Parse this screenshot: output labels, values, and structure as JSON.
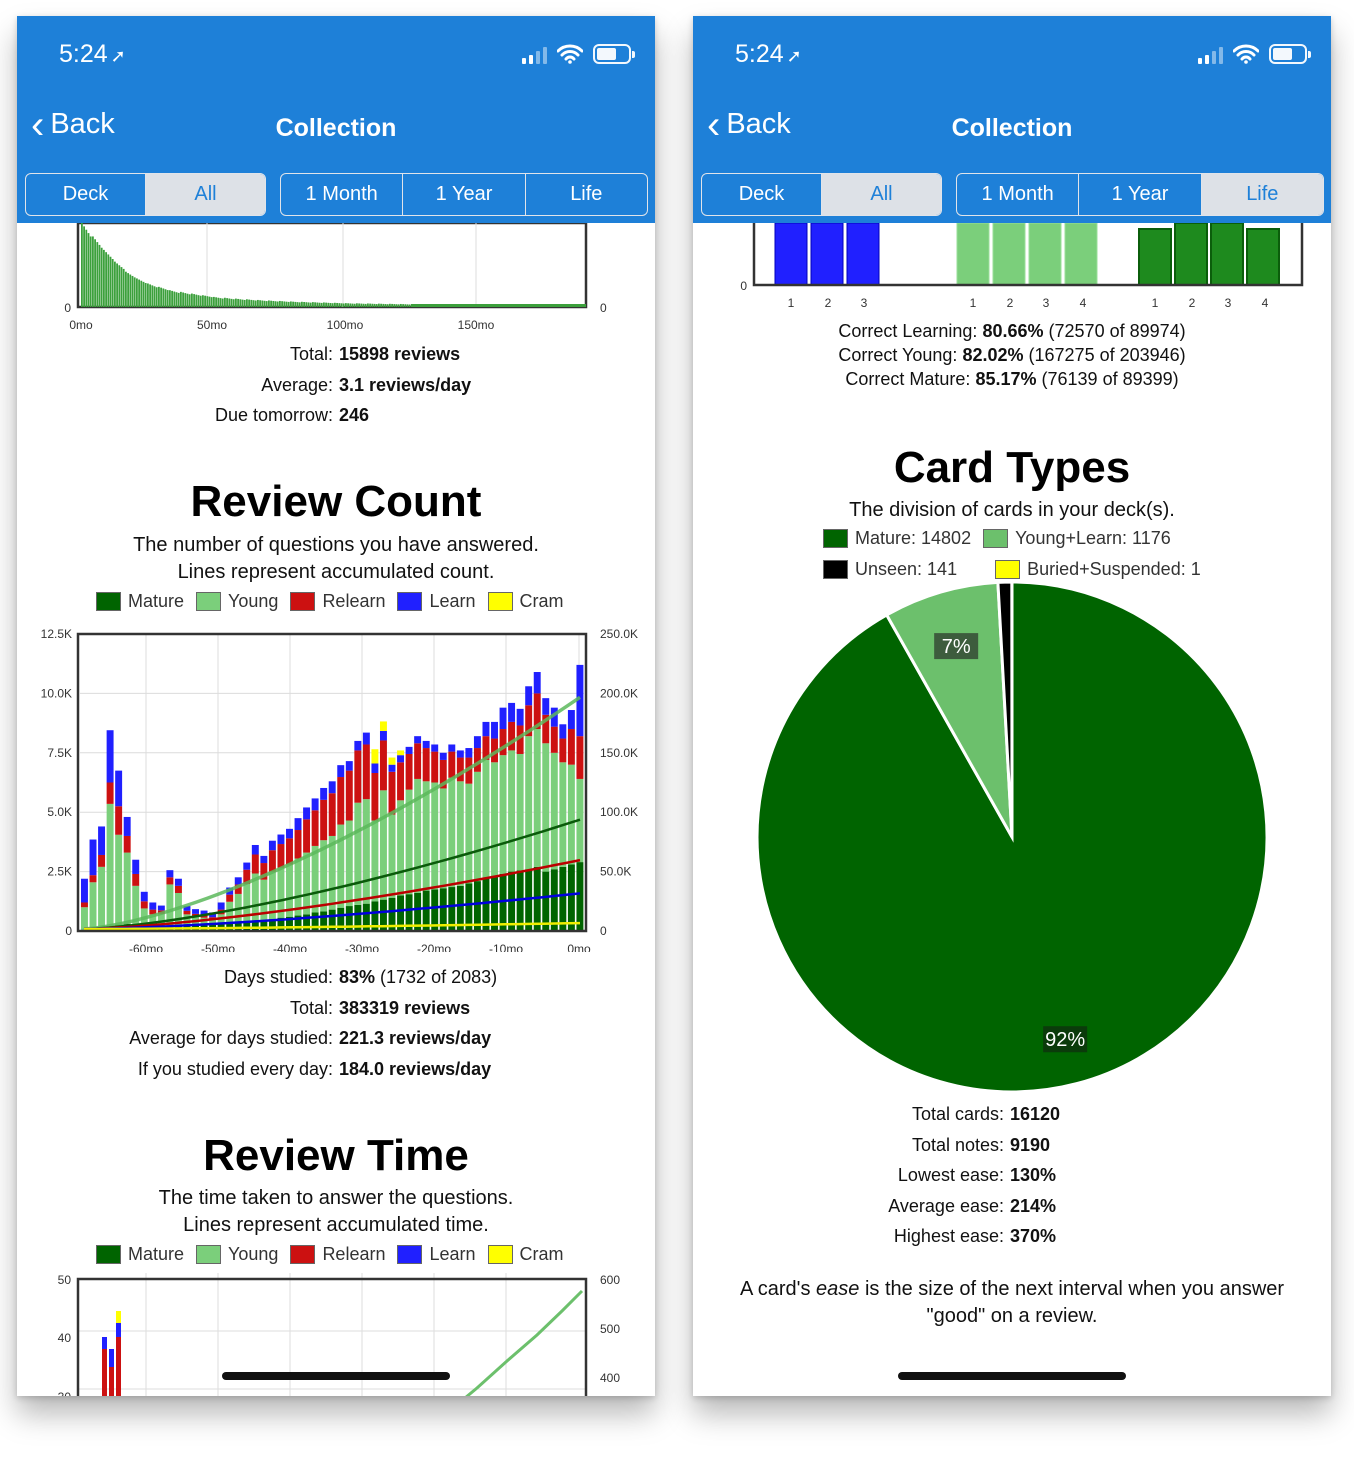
{
  "status": {
    "time": "5:24"
  },
  "nav": {
    "back_label": "Back",
    "title": "Collection"
  },
  "scope_options": [
    "Deck",
    "All"
  ],
  "scope_selected": "All",
  "period_options": [
    "1 Month",
    "1 Year",
    "Life"
  ],
  "period_selected_left": "1 Month",
  "period_selected_right": "Life",
  "colors": {
    "header": "#1e80d8",
    "mature": "#006400",
    "young": "#7bcf7b",
    "relearn": "#cc1111",
    "learn": "#2020ff",
    "cram": "#ffff00"
  },
  "left": {
    "forecast": {
      "x_ticks": [
        "0mo",
        "50mo",
        "100mo",
        "150mo"
      ],
      "y_left_tick": "0",
      "y_right_tick": "0",
      "stats": [
        {
          "label": "Total:",
          "value": "15898 reviews"
        },
        {
          "label": "Average:",
          "value": "3.1 reviews/day"
        },
        {
          "label": "Due tomorrow:",
          "value": "246"
        }
      ]
    },
    "review_count": {
      "title": "Review Count",
      "subtitle_1": "The number of questions you have answered.",
      "subtitle_2": "Lines represent accumulated count.",
      "legend": [
        "Mature",
        "Young",
        "Relearn",
        "Learn",
        "Cram"
      ],
      "stats": [
        {
          "label": "Days studied:",
          "value": "83%",
          "extra": " (1732 of 2083)"
        },
        {
          "label": "Total:",
          "value": "383319 reviews",
          "extra": ""
        },
        {
          "label": "Average for days studied:",
          "value": "221.3 reviews/day",
          "extra": ""
        },
        {
          "label": "If you studied every day:",
          "value": "184.0 reviews/day",
          "extra": ""
        }
      ]
    },
    "review_time": {
      "title": "Review Time",
      "subtitle_1": "The time taken to answer the questions.",
      "subtitle_2": "Lines represent accumulated time.",
      "legend": [
        "Mature",
        "Young",
        "Relearn",
        "Learn",
        "Cram"
      ]
    }
  },
  "right": {
    "answer_buttons": {
      "groups": [
        {
          "name": "Learning",
          "buttons": [
            "1",
            "2",
            "3"
          ]
        },
        {
          "name": "Young",
          "buttons": [
            "1",
            "2",
            "3",
            "4"
          ]
        },
        {
          "name": "Mature",
          "buttons": [
            "1",
            "2",
            "3",
            "4"
          ]
        }
      ],
      "y_tick": "0",
      "correct": [
        {
          "label": "Correct Learning:",
          "pct": "80.66%",
          "detail": "(72570 of 89974)"
        },
        {
          "label": "Correct Young:",
          "pct": "82.02%",
          "detail": "(167275 of 203946)"
        },
        {
          "label": "Correct Mature:",
          "pct": "85.17%",
          "detail": "(76139 of 89399)"
        }
      ]
    },
    "card_types": {
      "title": "Card Types",
      "subtitle": "The division of cards in your deck(s).",
      "legend": [
        "Mature: 14802",
        "Young+Learn: 1176",
        "Unseen: 141",
        "Buried+Suspended: 1"
      ],
      "stats": [
        {
          "label": "Total cards:",
          "value": "16120"
        },
        {
          "label": "Total notes:",
          "value": "9190"
        },
        {
          "label": "Lowest ease:",
          "value": "130%"
        },
        {
          "label": "Average ease:",
          "value": "214%"
        },
        {
          "label": "Highest ease:",
          "value": "370%"
        }
      ],
      "note_1_a": "A card's ",
      "note_1_em": "ease",
      "note_1_b": " is the size of the next interval when you answer",
      "note_2": "\"good\" on a review."
    }
  },
  "chart_data": [
    {
      "type": "bar",
      "title": "",
      "x_ticks": [
        "0mo",
        "50mo",
        "100mo",
        "150mo"
      ],
      "note": "forecast histogram, long decaying tail",
      "values": [
        50,
        42,
        34,
        27,
        21,
        17,
        14,
        12,
        10,
        9,
        8,
        7,
        6,
        5.5,
        5,
        4.6,
        4.2,
        3.9,
        3.6,
        3.3,
        3.1,
        2.9,
        2.7,
        2.5,
        2.3,
        2.2,
        2.1,
        2.0,
        1.9,
        1.8
      ]
    },
    {
      "type": "bar",
      "title": "Review Count",
      "x_ticks": [
        "-60mo",
        "-50mo",
        "-40mo",
        "-30mo",
        "-20mo",
        "-10mo",
        "0mo"
      ],
      "y_left_ticks": [
        "0",
        "2.5K",
        "5.0K",
        "7.5K",
        "10.0K",
        "12.5K"
      ],
      "y_right_ticks": [
        "0",
        "50.0K",
        "100.0K",
        "150.0K",
        "200.0K",
        "250.0K"
      ],
      "ylim": [
        0,
        12500
      ],
      "ylim_right": [
        0,
        250000
      ],
      "series": [
        {
          "name": "Mature",
          "values": [
            0,
            50,
            100,
            150,
            250,
            300,
            200,
            150,
            100,
            120,
            160,
            200,
            200,
            220,
            260,
            280,
            300,
            330,
            360,
            380,
            420,
            460,
            500,
            560,
            600,
            650,
            700,
            780,
            820,
            900,
            980,
            1050,
            1100,
            1150,
            1250,
            1320,
            1400,
            1500,
            1550,
            1600,
            1700,
            1750,
            1800,
            1850,
            1900,
            2000,
            2100,
            2200,
            2300,
            2400,
            2500,
            2550,
            2600,
            2700,
            2500,
            2600,
            2700,
            2800,
            2900
          ]
        },
        {
          "name": "Young",
          "values": [
            1000,
            2000,
            2600,
            5200,
            3800,
            3000,
            1700,
            800,
            600,
            600,
            1800,
            1400,
            500,
            400,
            300,
            200,
            400,
            900,
            1200,
            1600,
            2000,
            1700,
            2000,
            2100,
            2200,
            2400,
            2600,
            2800,
            3000,
            3100,
            3500,
            3600,
            4300,
            4400,
            3400,
            4600,
            3500,
            4000,
            4400,
            4800,
            4600,
            4500,
            4200,
            4600,
            4400,
            4200,
            4600,
            5000,
            4800,
            5000,
            5100,
            4900,
            5600,
            5800,
            5400,
            4900,
            4400,
            4200,
            3500
          ]
        },
        {
          "name": "Relearn",
          "values": [
            200,
            300,
            500,
            900,
            1200,
            700,
            500,
            300,
            200,
            150,
            300,
            300,
            150,
            100,
            100,
            100,
            200,
            300,
            400,
            600,
            800,
            700,
            900,
            1000,
            1100,
            1200,
            1400,
            1500,
            1700,
            1800,
            2000,
            2100,
            2200,
            2300,
            2000,
            2100,
            1800,
            1600,
            1500,
            1500,
            1400,
            1300,
            1200,
            1100,
            1000,
            1100,
            1000,
            1000,
            1000,
            1100,
            1200,
            1200,
            1300,
            1500,
            1200,
            1100,
            1000,
            1500,
            1800
          ]
        },
        {
          "name": "Learn",
          "values": [
            1000,
            1500,
            1200,
            2200,
            1500,
            800,
            600,
            400,
            300,
            200,
            300,
            300,
            200,
            200,
            200,
            200,
            300,
            300,
            300,
            300,
            400,
            300,
            400,
            400,
            400,
            500,
            500,
            500,
            500,
            500,
            500,
            400,
            400,
            500,
            400,
            400,
            300,
            300,
            300,
            300,
            300,
            300,
            300,
            300,
            300,
            400,
            500,
            600,
            700,
            900,
            800,
            700,
            800,
            900,
            700,
            800,
            600,
            800,
            3000
          ]
        },
        {
          "name": "Cram",
          "values": [
            0,
            0,
            0,
            0,
            0,
            0,
            0,
            0,
            0,
            0,
            0,
            0,
            0,
            0,
            0,
            0,
            0,
            0,
            0,
            0,
            0,
            0,
            0,
            0,
            0,
            0,
            0,
            0,
            0,
            0,
            0,
            0,
            0,
            0,
            600,
            400,
            300,
            200,
            0,
            0,
            0,
            0,
            0,
            0,
            0,
            0,
            0,
            0,
            0,
            0,
            0,
            0,
            0,
            0,
            0,
            0,
            0,
            0,
            0
          ]
        }
      ],
      "cumulative_lines": [
        {
          "name": "Young",
          "end_value": 195000
        },
        {
          "name": "Mature",
          "end_value": 92000
        },
        {
          "name": "Relearn",
          "end_value": 58000
        },
        {
          "name": "Learn",
          "end_value": 30000
        },
        {
          "name": "Cram",
          "end_value": 5000
        }
      ]
    },
    {
      "type": "bar",
      "title": "Review Time",
      "y_left_ticks": [
        "30",
        "40",
        "50"
      ],
      "y_right_ticks": [
        "400",
        "500",
        "600"
      ]
    },
    {
      "type": "bar",
      "title": "Answer Buttons",
      "categories": [
        "Learning 1",
        "Learning 2",
        "Learning 3",
        "Young 1",
        "Young 2",
        "Young 3",
        "Young 4",
        "Mature 1",
        "Mature 2",
        "Mature 3",
        "Mature 4"
      ]
    },
    {
      "type": "pie",
      "title": "Card Types",
      "categories": [
        "Mature",
        "Young+Learn",
        "Unseen",
        "Buried+Suspended"
      ],
      "values": [
        14802,
        1176,
        141,
        1
      ],
      "labels": [
        "92%",
        "7%",
        "",
        ""
      ]
    }
  ]
}
